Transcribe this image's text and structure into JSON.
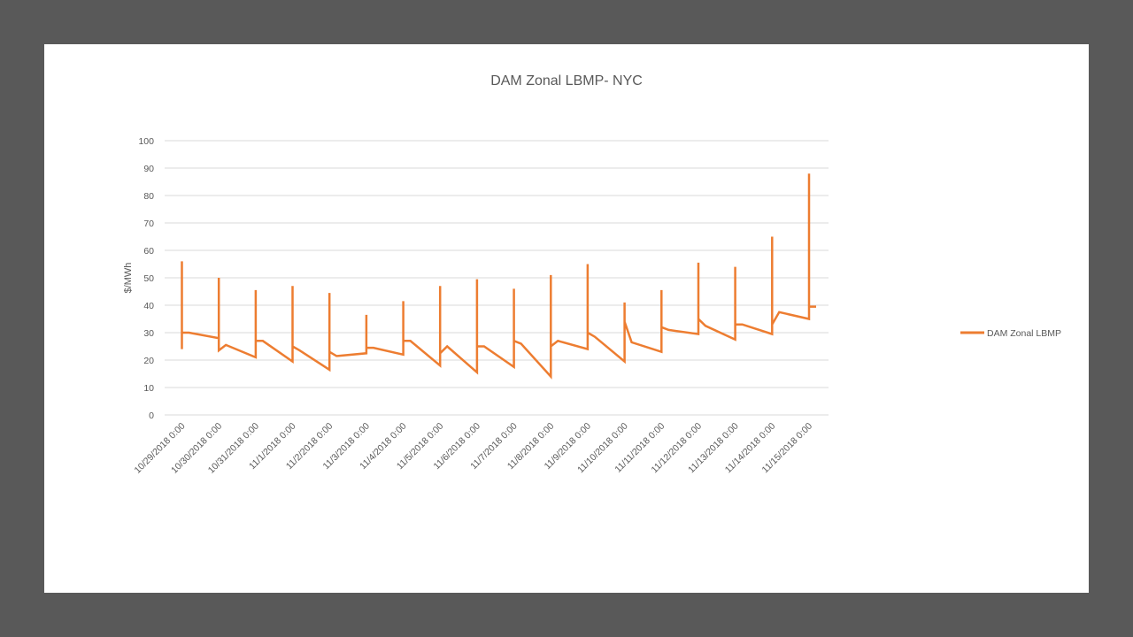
{
  "chart_data": {
    "type": "line",
    "title": "DAM Zonal LBMP- NYC",
    "ylabel": "$/MWh",
    "xlabel": "",
    "ylim": [
      0,
      100
    ],
    "y_ticks": [
      0,
      10,
      20,
      30,
      40,
      50,
      60,
      70,
      80,
      90,
      100
    ],
    "grid": true,
    "legend_position": "right",
    "series_color": "#ED7D31",
    "categories": [
      "10/29/2018 0:00",
      "10/30/2018 0:00",
      "10/31/2018 0:00",
      "11/1/2018 0:00",
      "11/2/2018 0:00",
      "11/3/2018 0:00",
      "11/4/2018 0:00",
      "11/5/2018 0:00",
      "11/6/2018 0:00",
      "11/7/2018 0:00",
      "11/8/2018 0:00",
      "11/9/2018 0:00",
      "11/10/2018 0:00",
      "11/11/2018 0:00",
      "11/12/2018 0:00",
      "11/13/2018 0:00",
      "11/14/2018 0:00",
      "11/15/2018 0:00"
    ],
    "series": [
      {
        "name": "DAM Zonal LBMP",
        "x": [
          "10/29/2018 0:00",
          "10/29/2018 0:00",
          "10/29/2018 0:00",
          "10/29/2018 0:00",
          "10/30/2018 0:00",
          "10/30/2018 0:00",
          "10/30/2018 0:00",
          "10/30/2018 0:00",
          "10/31/2018 0:00",
          "10/31/2018 0:00",
          "10/31/2018 0:00",
          "10/31/2018 0:00",
          "11/1/2018 0:00",
          "11/1/2018 0:00",
          "11/1/2018 0:00",
          "11/1/2018 0:00",
          "11/2/2018 0:00",
          "11/2/2018 0:00",
          "11/2/2018 0:00",
          "11/2/2018 0:00",
          "11/3/2018 0:00",
          "11/3/2018 0:00",
          "11/3/2018 0:00",
          "11/3/2018 0:00",
          "11/4/2018 0:00",
          "11/4/2018 0:00",
          "11/4/2018 0:00",
          "11/4/2018 0:00",
          "11/5/2018 0:00",
          "11/5/2018 0:00",
          "11/5/2018 0:00",
          "11/5/2018 0:00",
          "11/6/2018 0:00",
          "11/6/2018 0:00",
          "11/6/2018 0:00",
          "11/6/2018 0:00",
          "11/7/2018 0:00",
          "11/7/2018 0:00",
          "11/7/2018 0:00",
          "11/7/2018 0:00",
          "11/8/2018 0:00",
          "11/8/2018 0:00",
          "11/8/2018 0:00",
          "11/8/2018 0:00",
          "11/9/2018 0:00",
          "11/9/2018 0:00",
          "11/9/2018 0:00",
          "11/9/2018 0:00",
          "11/10/2018 0:00",
          "11/10/2018 0:00",
          "11/10/2018 0:00",
          "11/10/2018 0:00",
          "11/11/2018 0:00",
          "11/11/2018 0:00",
          "11/11/2018 0:00",
          "11/11/2018 0:00",
          "11/12/2018 0:00",
          "11/12/2018 0:00",
          "11/12/2018 0:00",
          "11/12/2018 0:00",
          "11/13/2018 0:00",
          "11/13/2018 0:00",
          "11/13/2018 0:00",
          "11/13/2018 0:00",
          "11/14/2018 0:00",
          "11/14/2018 0:00",
          "11/14/2018 0:00",
          "11/14/2018 0:00",
          "11/15/2018 0:00",
          "11/15/2018 0:00",
          "11/15/2018 0:00",
          "11/15/2018 0:00"
        ],
        "values": [
          24,
          56,
          30,
          30,
          28,
          50,
          23.5,
          25.5,
          21,
          45.5,
          27,
          27,
          19.5,
          47,
          25,
          23.5,
          16.5,
          44.5,
          23,
          21.5,
          22.5,
          36.5,
          24.5,
          24.5,
          22,
          41.5,
          27,
          27,
          18,
          47,
          22.5,
          25,
          15.5,
          49.5,
          25,
          25,
          17.5,
          46,
          27,
          26,
          14,
          51,
          25,
          27,
          24,
          55,
          30,
          28.5,
          19.5,
          41,
          34,
          26.5,
          23,
          45.5,
          32,
          31,
          29.5,
          55.5,
          35,
          32.5,
          27.5,
          54,
          33,
          33,
          29.5,
          65,
          33,
          37.5,
          35,
          88,
          39.5,
          39.5
        ]
      }
    ]
  }
}
